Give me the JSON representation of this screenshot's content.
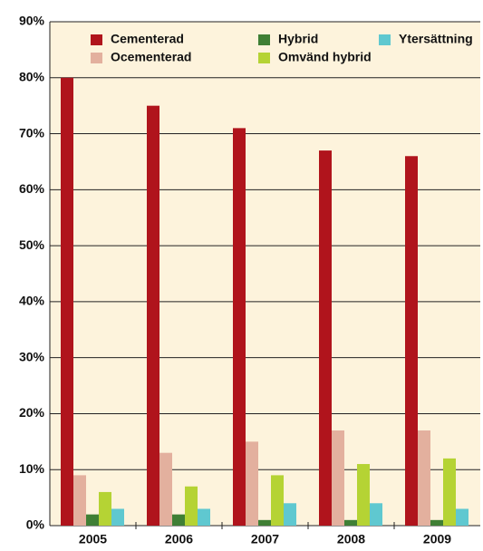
{
  "chart_data": {
    "type": "bar",
    "categories": [
      "2005",
      "2006",
      "2007",
      "2008",
      "2009"
    ],
    "series": [
      {
        "name": "Cementerad",
        "color": "#b0141c",
        "values": [
          80,
          75,
          71,
          67,
          66
        ]
      },
      {
        "name": "Ocementerad",
        "color": "#e3b09e",
        "values": [
          9,
          13,
          15,
          17,
          17
        ]
      },
      {
        "name": "Hybrid",
        "color": "#3f7f35",
        "values": [
          2,
          2,
          1,
          1,
          1
        ]
      },
      {
        "name": "Omvänd hybrid",
        "color": "#b5d334",
        "values": [
          6,
          7,
          9,
          11,
          12
        ]
      },
      {
        "name": "Ytersättning",
        "color": "#5fc8d0",
        "values": [
          3,
          3,
          4,
          4,
          3
        ]
      }
    ],
    "ylim": [
      0,
      90
    ],
    "yticks": [
      {
        "value": 0,
        "label": "0%"
      },
      {
        "value": 10,
        "label": "10%"
      },
      {
        "value": 20,
        "label": "20%"
      },
      {
        "value": 30,
        "label": "30%"
      },
      {
        "value": 40,
        "label": "40%"
      },
      {
        "value": 50,
        "label": "50%"
      },
      {
        "value": 60,
        "label": "60%"
      },
      {
        "value": 70,
        "label": "70%"
      },
      {
        "value": 80,
        "label": "80%"
      },
      {
        "value": 90,
        "label": "90%"
      }
    ],
    "grid": true,
    "background": "#fdf3dc"
  }
}
